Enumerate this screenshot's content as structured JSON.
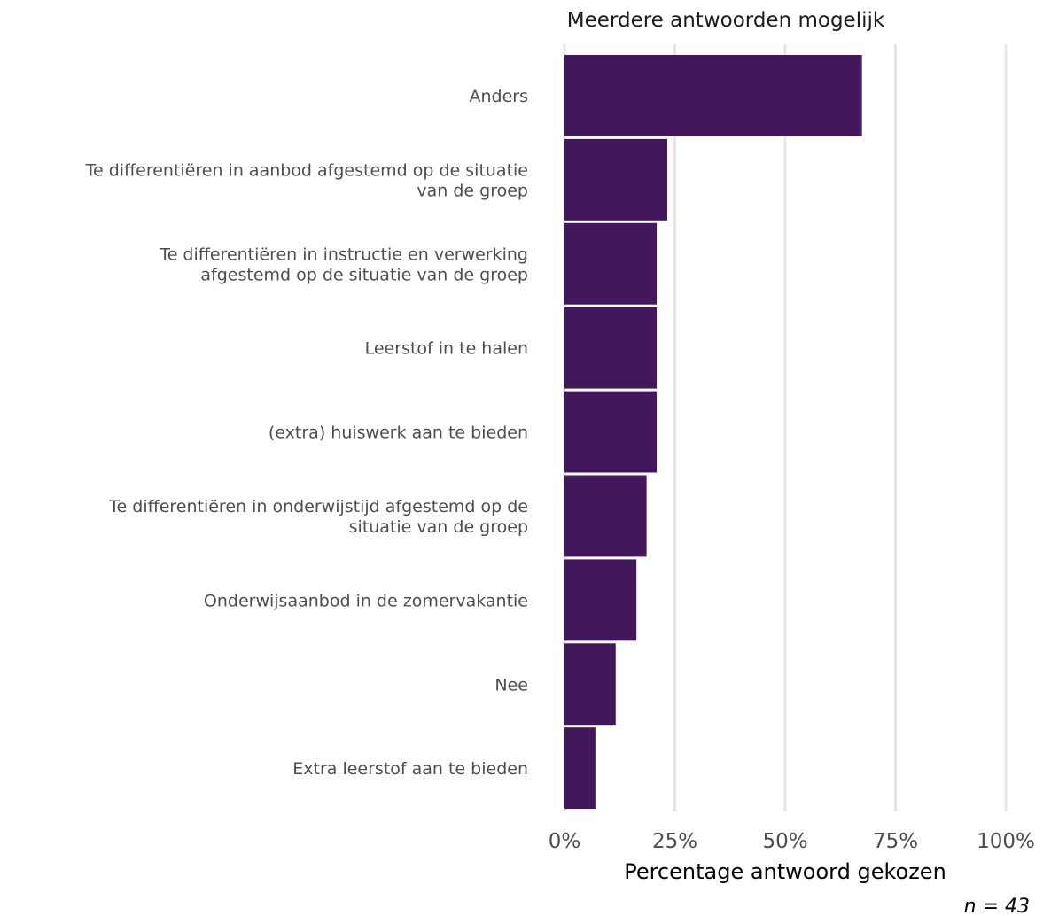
{
  "chart_data": {
    "type": "bar",
    "orientation": "horizontal",
    "subtitle": "Meerdere antwoorden mogelijk",
    "xlabel": "Percentage antwoord gekozen",
    "ylabel": "",
    "caption": "n = 43",
    "xlim": [
      0,
      100
    ],
    "x_ticks": [
      "0%",
      "25%",
      "50%",
      "75%",
      "100%"
    ],
    "x_tick_values": [
      0,
      25,
      50,
      75,
      100
    ],
    "grid": "vertical",
    "bar_color": "#43175c",
    "categories": [
      [
        "Anders"
      ],
      [
        "Te differentiëren in aanbod afgestemd op de situatie",
        "van de groep"
      ],
      [
        "Te differentiëren in instructie en verwerking",
        "afgestemd op de situatie van de groep"
      ],
      [
        "Leerstof in te halen"
      ],
      [
        "(extra) huiswerk aan te bieden"
      ],
      [
        "Te differentiëren in onderwijstijd afgestemd op de",
        "situatie van de groep"
      ],
      [
        "Onderwijsaanbod in de zomervakantie"
      ],
      [
        "Nee"
      ],
      [
        "Extra leerstof aan te bieden"
      ]
    ],
    "values": [
      67.4,
      23.3,
      20.9,
      20.9,
      20.9,
      18.6,
      16.3,
      11.6,
      7.0
    ]
  }
}
